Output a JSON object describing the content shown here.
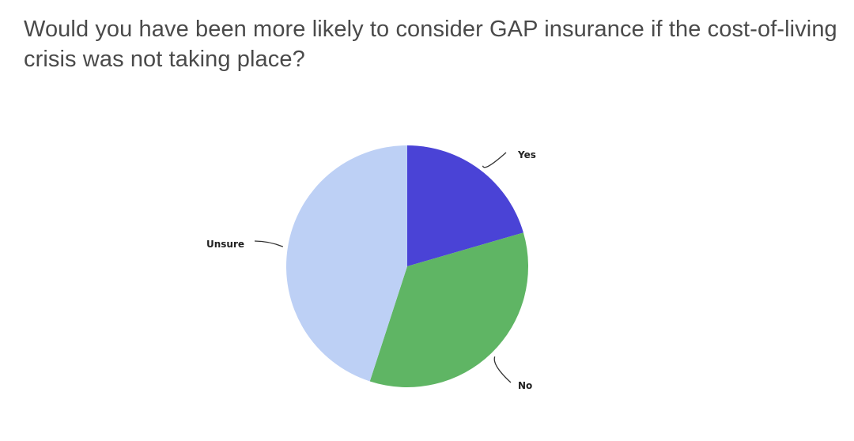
{
  "question": {
    "title": "Would you have been more likely to consider GAP insurance if the cost-of-living crisis was not taking place?"
  },
  "chart_data": {
    "type": "pie",
    "title": "",
    "categories": [
      "Yes",
      "No",
      "Unsure"
    ],
    "values": [
      20.5,
      34.5,
      45.0
    ],
    "colors": [
      "#4a43d6",
      "#5fb564",
      "#bdd0f5"
    ],
    "start_angle_deg": 0,
    "direction": "clockwise",
    "labels_outside": true
  }
}
